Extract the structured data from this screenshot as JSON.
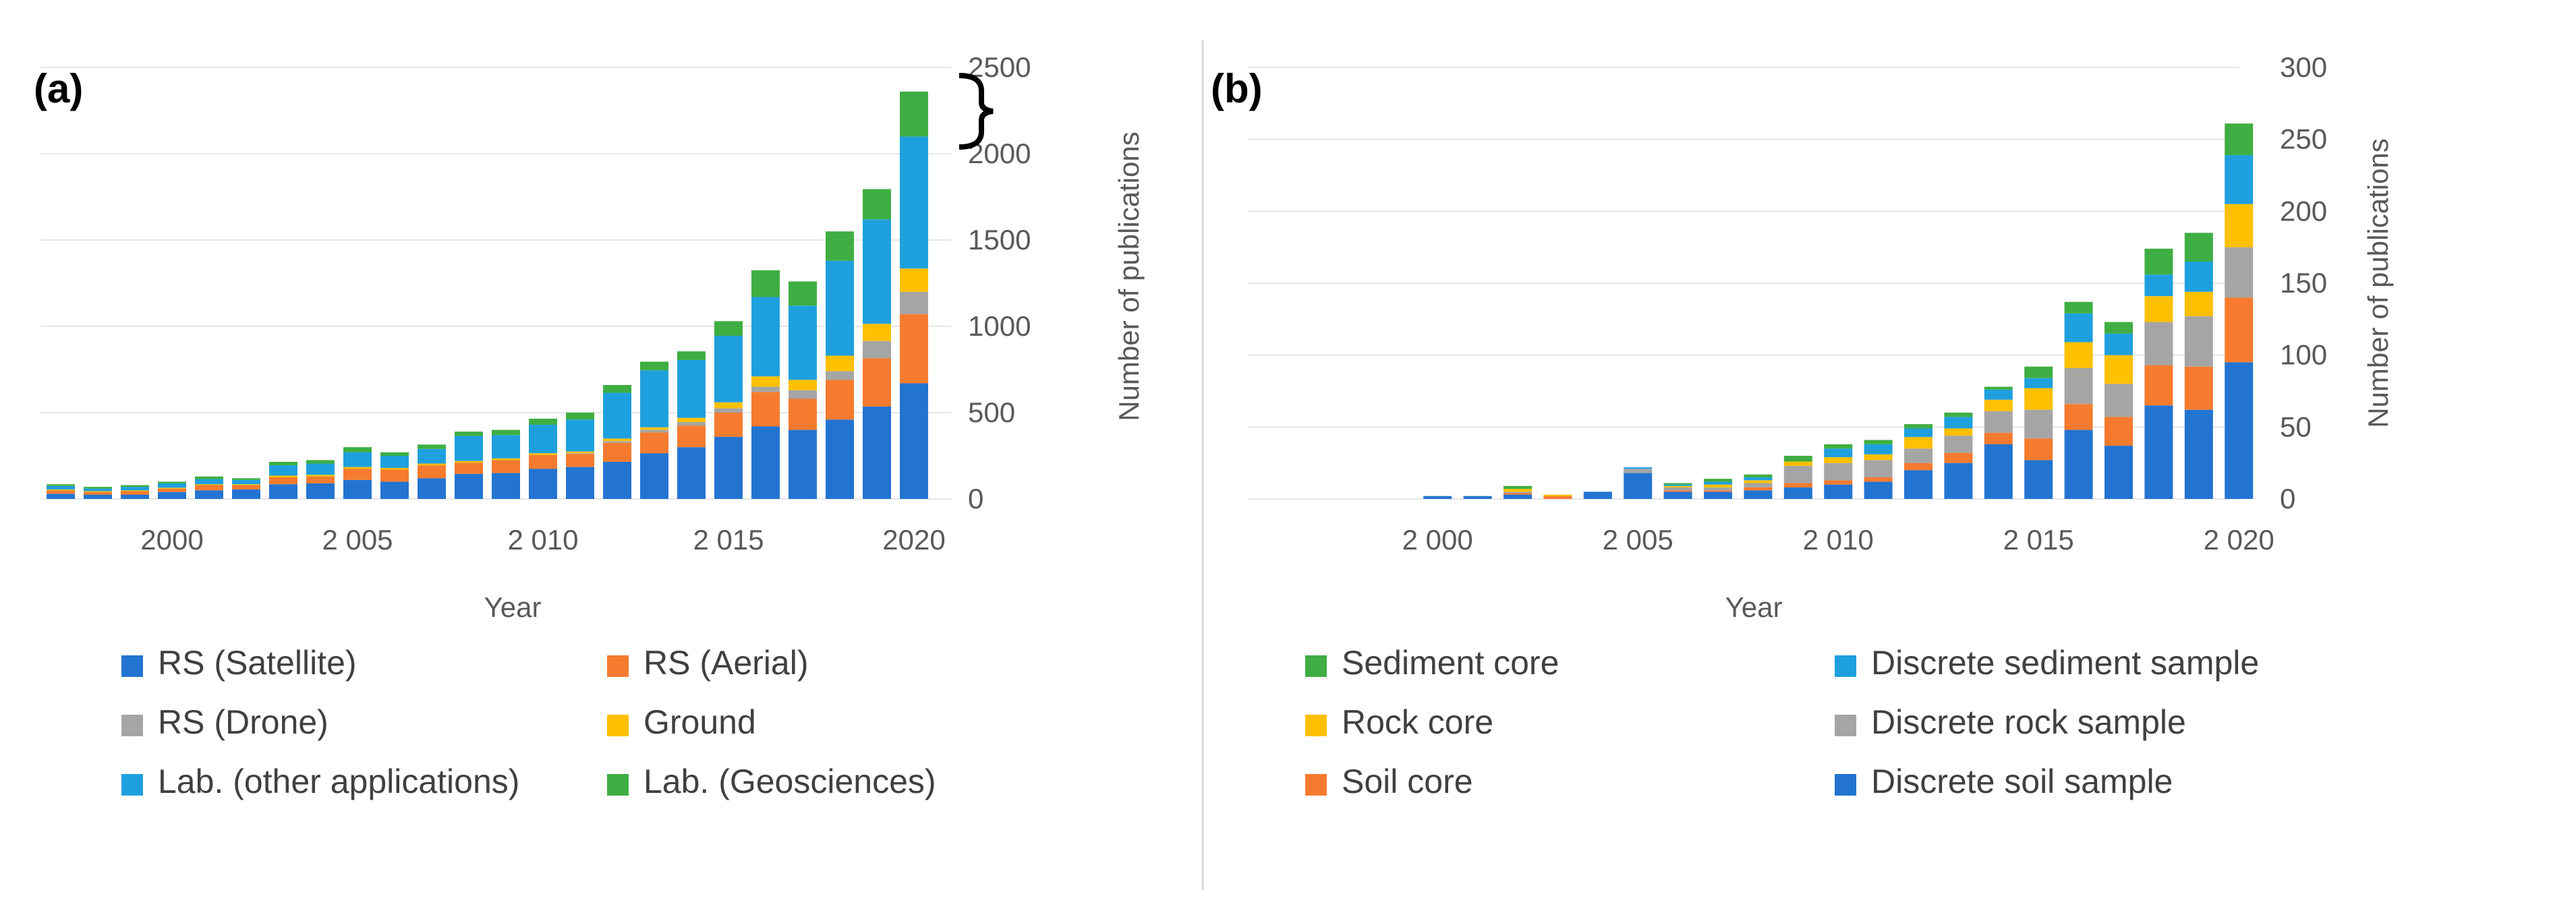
{
  "colors": {
    "rs_satellite": "#2374D1",
    "rs_aerial": "#F67B2E",
    "rs_drone": "#A5A5A5",
    "ground": "#FFC000",
    "lab_other": "#1FA0DE",
    "lab_geo": "#3FAE42",
    "sediment_core": "#3FAE42",
    "discrete_sediment": "#1FA0DE",
    "rock_core": "#FFC000",
    "discrete_rock": "#A5A5A5",
    "soil_core": "#F67B2E",
    "discrete_soil": "#2374D1"
  },
  "chart_data": [
    {
      "id": "a",
      "panel_label": "(a)",
      "type": "stacked-bar",
      "title": "",
      "xlabel": "Year",
      "ylabel": "Number of publications",
      "ylim": [
        0,
        2500
      ],
      "yticks": [
        "2500",
        "2000",
        "1500",
        "1000",
        "500",
        "0"
      ],
      "ytick_values": [
        2500,
        2000,
        1500,
        1000,
        500,
        0
      ],
      "xtick_labels": [
        "2000",
        "2 005",
        "2 010",
        "2 015",
        "2020"
      ],
      "xtick_years": [
        2000,
        2005,
        2010,
        2015,
        2020
      ],
      "years": [
        1997,
        1998,
        1999,
        2000,
        2001,
        2002,
        2003,
        2004,
        2005,
        2006,
        2007,
        2008,
        2009,
        2010,
        2011,
        2012,
        2013,
        2014,
        2015,
        2016,
        2017,
        2018,
        2019,
        2020
      ],
      "annotation": "bracket over 2020 Lab. (Geosciences) segment",
      "series": [
        {
          "name": "RS (Satellite)",
          "color_key": "rs_satellite",
          "values": [
            30,
            25,
            25,
            40,
            50,
            55,
            85,
            90,
            110,
            100,
            120,
            145,
            150,
            175,
            185,
            215,
            265,
            300,
            360,
            420,
            400,
            460,
            535,
            670
          ]
        },
        {
          "name": "RS (Aerial)",
          "color_key": "rs_aerial",
          "values": [
            20,
            15,
            20,
            20,
            30,
            25,
            40,
            40,
            65,
            70,
            75,
            65,
            75,
            80,
            75,
            110,
            120,
            125,
            140,
            200,
            180,
            230,
            280,
            400
          ]
        },
        {
          "name": "RS (Drone)",
          "color_key": "rs_drone",
          "values": [
            0,
            0,
            0,
            0,
            0,
            0,
            0,
            0,
            0,
            0,
            0,
            0,
            0,
            0,
            5,
            10,
            15,
            20,
            25,
            30,
            50,
            50,
            100,
            130
          ]
        },
        {
          "name": "Ground",
          "color_key": "ground",
          "values": [
            5,
            5,
            5,
            5,
            5,
            5,
            10,
            10,
            10,
            10,
            10,
            10,
            10,
            10,
            10,
            15,
            15,
            25,
            35,
            60,
            60,
            90,
            100,
            135
          ]
        },
        {
          "name": "Lab. (other applications)",
          "color_key": "lab_other",
          "values": [
            20,
            15,
            20,
            25,
            30,
            25,
            60,
            65,
            85,
            70,
            85,
            145,
            135,
            165,
            185,
            265,
            330,
            335,
            385,
            460,
            430,
            550,
            605,
            765
          ]
        },
        {
          "name": "Lab. (Geosciences)",
          "color_key": "lab_geo",
          "values": [
            10,
            10,
            10,
            10,
            15,
            10,
            20,
            20,
            30,
            20,
            25,
            25,
            30,
            35,
            40,
            45,
            50,
            50,
            85,
            155,
            140,
            170,
            175,
            260
          ]
        }
      ],
      "legend": [
        "RS (Satellite)",
        "RS (Aerial)",
        "RS (Drone)",
        "Ground",
        "Lab. (other applications)",
        "Lab. (Geosciences)"
      ]
    },
    {
      "id": "b",
      "panel_label": "(b)",
      "type": "stacked-bar",
      "title": "",
      "xlabel": "Year",
      "ylabel": "Number of publications",
      "ylim": [
        0,
        300
      ],
      "yticks": [
        "300",
        "250",
        "200",
        "150",
        "100",
        "50",
        "0"
      ],
      "ytick_values": [
        300,
        250,
        200,
        150,
        100,
        50,
        0
      ],
      "xtick_labels": [
        "2 000",
        "2 005",
        "2 010",
        "2 015",
        "2 020"
      ],
      "xtick_years": [
        2000,
        2005,
        2010,
        2015,
        2020
      ],
      "years": [
        1997,
        1998,
        1999,
        2000,
        2001,
        2002,
        2003,
        2004,
        2005,
        2006,
        2007,
        2008,
        2009,
        2010,
        2011,
        2012,
        2013,
        2014,
        2015,
        2016,
        2017,
        2018,
        2019,
        2020
      ],
      "series": [
        {
          "name": "Discrete soil sample",
          "color_key": "discrete_soil",
          "values": [
            0,
            0,
            0,
            2,
            2,
            3,
            0,
            5,
            18,
            5,
            5,
            6,
            8,
            10,
            12,
            20,
            25,
            38,
            27,
            48,
            37,
            65,
            62,
            95
          ]
        },
        {
          "name": "Soil core",
          "color_key": "soil_core",
          "values": [
            0,
            0,
            0,
            0,
            0,
            1,
            2,
            0,
            0,
            1,
            1,
            2,
            3,
            3,
            3,
            5,
            7,
            8,
            15,
            18,
            20,
            28,
            30,
            45
          ]
        },
        {
          "name": "Discrete rock sample",
          "color_key": "discrete_rock",
          "values": [
            0,
            0,
            0,
            0,
            0,
            1,
            0,
            0,
            3,
            2,
            2,
            3,
            12,
            12,
            12,
            10,
            12,
            15,
            20,
            25,
            23,
            30,
            35,
            35
          ]
        },
        {
          "name": "Rock core",
          "color_key": "rock_core",
          "values": [
            0,
            0,
            0,
            0,
            0,
            2,
            1,
            0,
            0,
            1,
            2,
            2,
            3,
            4,
            4,
            8,
            5,
            8,
            15,
            18,
            20,
            18,
            17,
            30
          ]
        },
        {
          "name": "Discrete sediment sample",
          "color_key": "discrete_sediment",
          "values": [
            0,
            0,
            0,
            0,
            0,
            0,
            0,
            0,
            1,
            1,
            2,
            2,
            0,
            6,
            7,
            6,
            8,
            7,
            7,
            20,
            15,
            15,
            21,
            34
          ]
        },
        {
          "name": "Sediment core",
          "color_key": "sediment_core",
          "values": [
            0,
            0,
            0,
            0,
            0,
            2,
            0,
            0,
            0,
            1,
            2,
            2,
            4,
            3,
            3,
            3,
            3,
            2,
            8,
            8,
            8,
            18,
            20,
            22
          ]
        }
      ],
      "legend": [
        "Sediment core",
        "Discrete sediment sample",
        "Rock core",
        "Discrete rock sample",
        "Soil core",
        "Discrete soil sample"
      ]
    }
  ]
}
